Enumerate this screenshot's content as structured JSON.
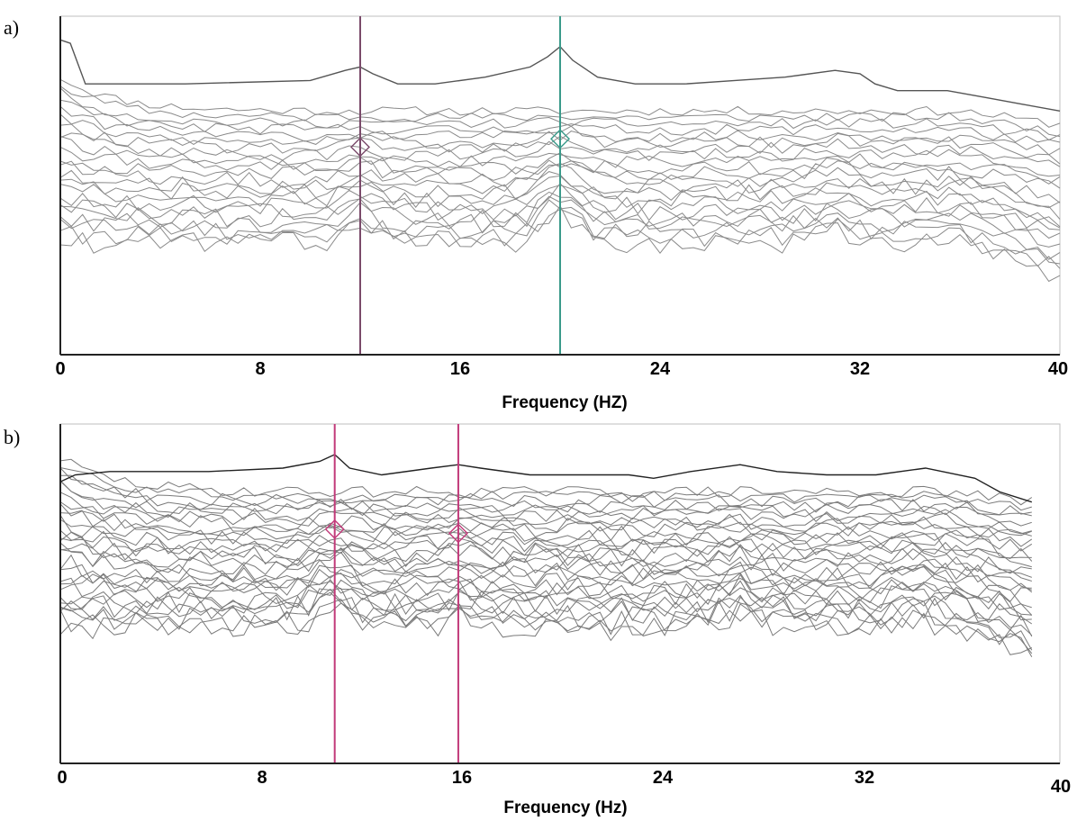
{
  "chart_data": [
    {
      "panel": "a)",
      "type": "line",
      "xlabel": "Frequency (HZ)",
      "xlim": [
        0,
        40
      ],
      "xticks": [
        "0",
        "8",
        "16",
        "24",
        "32",
        "40"
      ],
      "markers": [
        {
          "x": 12,
          "color": "#7a4a6a"
        },
        {
          "x": 20,
          "color": "#3a9a8a"
        }
      ],
      "envelope_color": "#555555",
      "series_color": "#8a8a8a",
      "envelope": {
        "x": [
          0,
          0.4,
          1,
          5,
          10,
          11.4,
          12,
          12.5,
          13.5,
          15,
          17,
          18.8,
          19.5,
          20,
          20.5,
          21.5,
          23,
          25,
          27,
          29,
          31,
          32,
          32.6,
          33.5,
          35.5,
          37,
          38.5,
          40
        ],
        "y": [
          0.93,
          0.92,
          0.8,
          0.8,
          0.81,
          0.84,
          0.85,
          0.83,
          0.8,
          0.8,
          0.82,
          0.85,
          0.88,
          0.91,
          0.87,
          0.82,
          0.8,
          0.8,
          0.81,
          0.82,
          0.84,
          0.83,
          0.8,
          0.78,
          0.78,
          0.76,
          0.74,
          0.72
        ]
      },
      "band_count": 22,
      "band_top": 0.72,
      "band_bottom": 0.33,
      "peaks": [
        {
          "x": 12,
          "gain": 0.05
        },
        {
          "x": 20,
          "gain": 0.09
        },
        {
          "x": 31,
          "gain": 0.04
        }
      ],
      "tail": [
        {
          "x": 36,
          "y": 0.0
        },
        {
          "x": 40,
          "y": -0.1
        }
      ]
    },
    {
      "panel": "b)",
      "type": "line",
      "xlabel": "Frequency (Hz)",
      "xlim": [
        0,
        40
      ],
      "xticks": [
        "0",
        "8",
        "16",
        "24",
        "32",
        "40"
      ],
      "markers": [
        {
          "x": 11.1,
          "color": "#c23a7a"
        },
        {
          "x": 16.1,
          "color": "#c23a7a"
        }
      ],
      "envelope_color": "#222222",
      "series_color": "#7a7a7a",
      "envelope": {
        "x": [
          0,
          0.6,
          2,
          6,
          9,
          10.5,
          11.1,
          11.7,
          13,
          15,
          16.1,
          17,
          19,
          21,
          23,
          24,
          25.5,
          27.5,
          29,
          31,
          33,
          35,
          37,
          38,
          39.3
        ],
        "y": [
          0.83,
          0.85,
          0.86,
          0.86,
          0.87,
          0.89,
          0.91,
          0.87,
          0.85,
          0.87,
          0.88,
          0.87,
          0.85,
          0.85,
          0.85,
          0.84,
          0.86,
          0.88,
          0.86,
          0.85,
          0.85,
          0.87,
          0.84,
          0.8,
          0.77
        ]
      },
      "band_count": 30,
      "band_top": 0.8,
      "band_bottom": 0.4,
      "peaks": [
        {
          "x": 11.1,
          "gain": 0.05
        },
        {
          "x": 16.1,
          "gain": 0.03
        },
        {
          "x": 27.5,
          "gain": 0.04
        },
        {
          "x": 34.5,
          "gain": 0.03
        }
      ],
      "tail": [
        {
          "x": 36,
          "y": 0.0
        },
        {
          "x": 39.3,
          "y": -0.08
        }
      ]
    }
  ]
}
